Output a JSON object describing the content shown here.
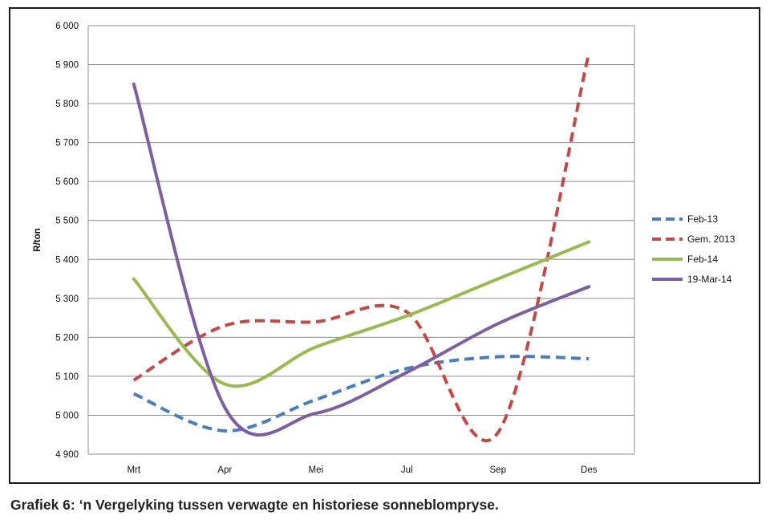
{
  "caption": "Grafiek 6: ‘n Vergelyking tussen verwagte en historiese sonneblompryse.",
  "chart_data": {
    "type": "line",
    "title": "",
    "xlabel": "",
    "ylabel": "R/ton",
    "categories": [
      "Mrt",
      "Apr",
      "Mei",
      "Jul",
      "Sep",
      "Des"
    ],
    "ylim": [
      4900,
      6000
    ],
    "yticks": [
      4900,
      5000,
      5100,
      5200,
      5300,
      5400,
      5500,
      5600,
      5700,
      5800,
      5900,
      6000
    ],
    "ytick_labels": [
      "4 900",
      "5 000",
      "5 100",
      "5 200",
      "5 300",
      "5 400",
      "5 500",
      "5 600",
      "5 700",
      "5 800",
      "5 900",
      "6 000"
    ],
    "grid": true,
    "smooth": true,
    "legend_position": "right",
    "series": [
      {
        "name": "Feb-13",
        "values": [
          5055,
          4960,
          5040,
          5120,
          5150,
          5145
        ],
        "color": "#4a7ebb",
        "dash": true
      },
      {
        "name": "Gem. 2013",
        "values": [
          5090,
          5230,
          5240,
          5265,
          4955,
          5930
        ],
        "color": "#be4b48",
        "dash": true
      },
      {
        "name": "Feb-14",
        "values": [
          5350,
          5080,
          5175,
          5255,
          5350,
          5445
        ],
        "color": "#98b954",
        "dash": false
      },
      {
        "name": "19-Mar-14",
        "values": [
          5850,
          5020,
          5005,
          5110,
          5235,
          5330
        ],
        "color": "#7d5fa0",
        "dash": false
      }
    ]
  }
}
